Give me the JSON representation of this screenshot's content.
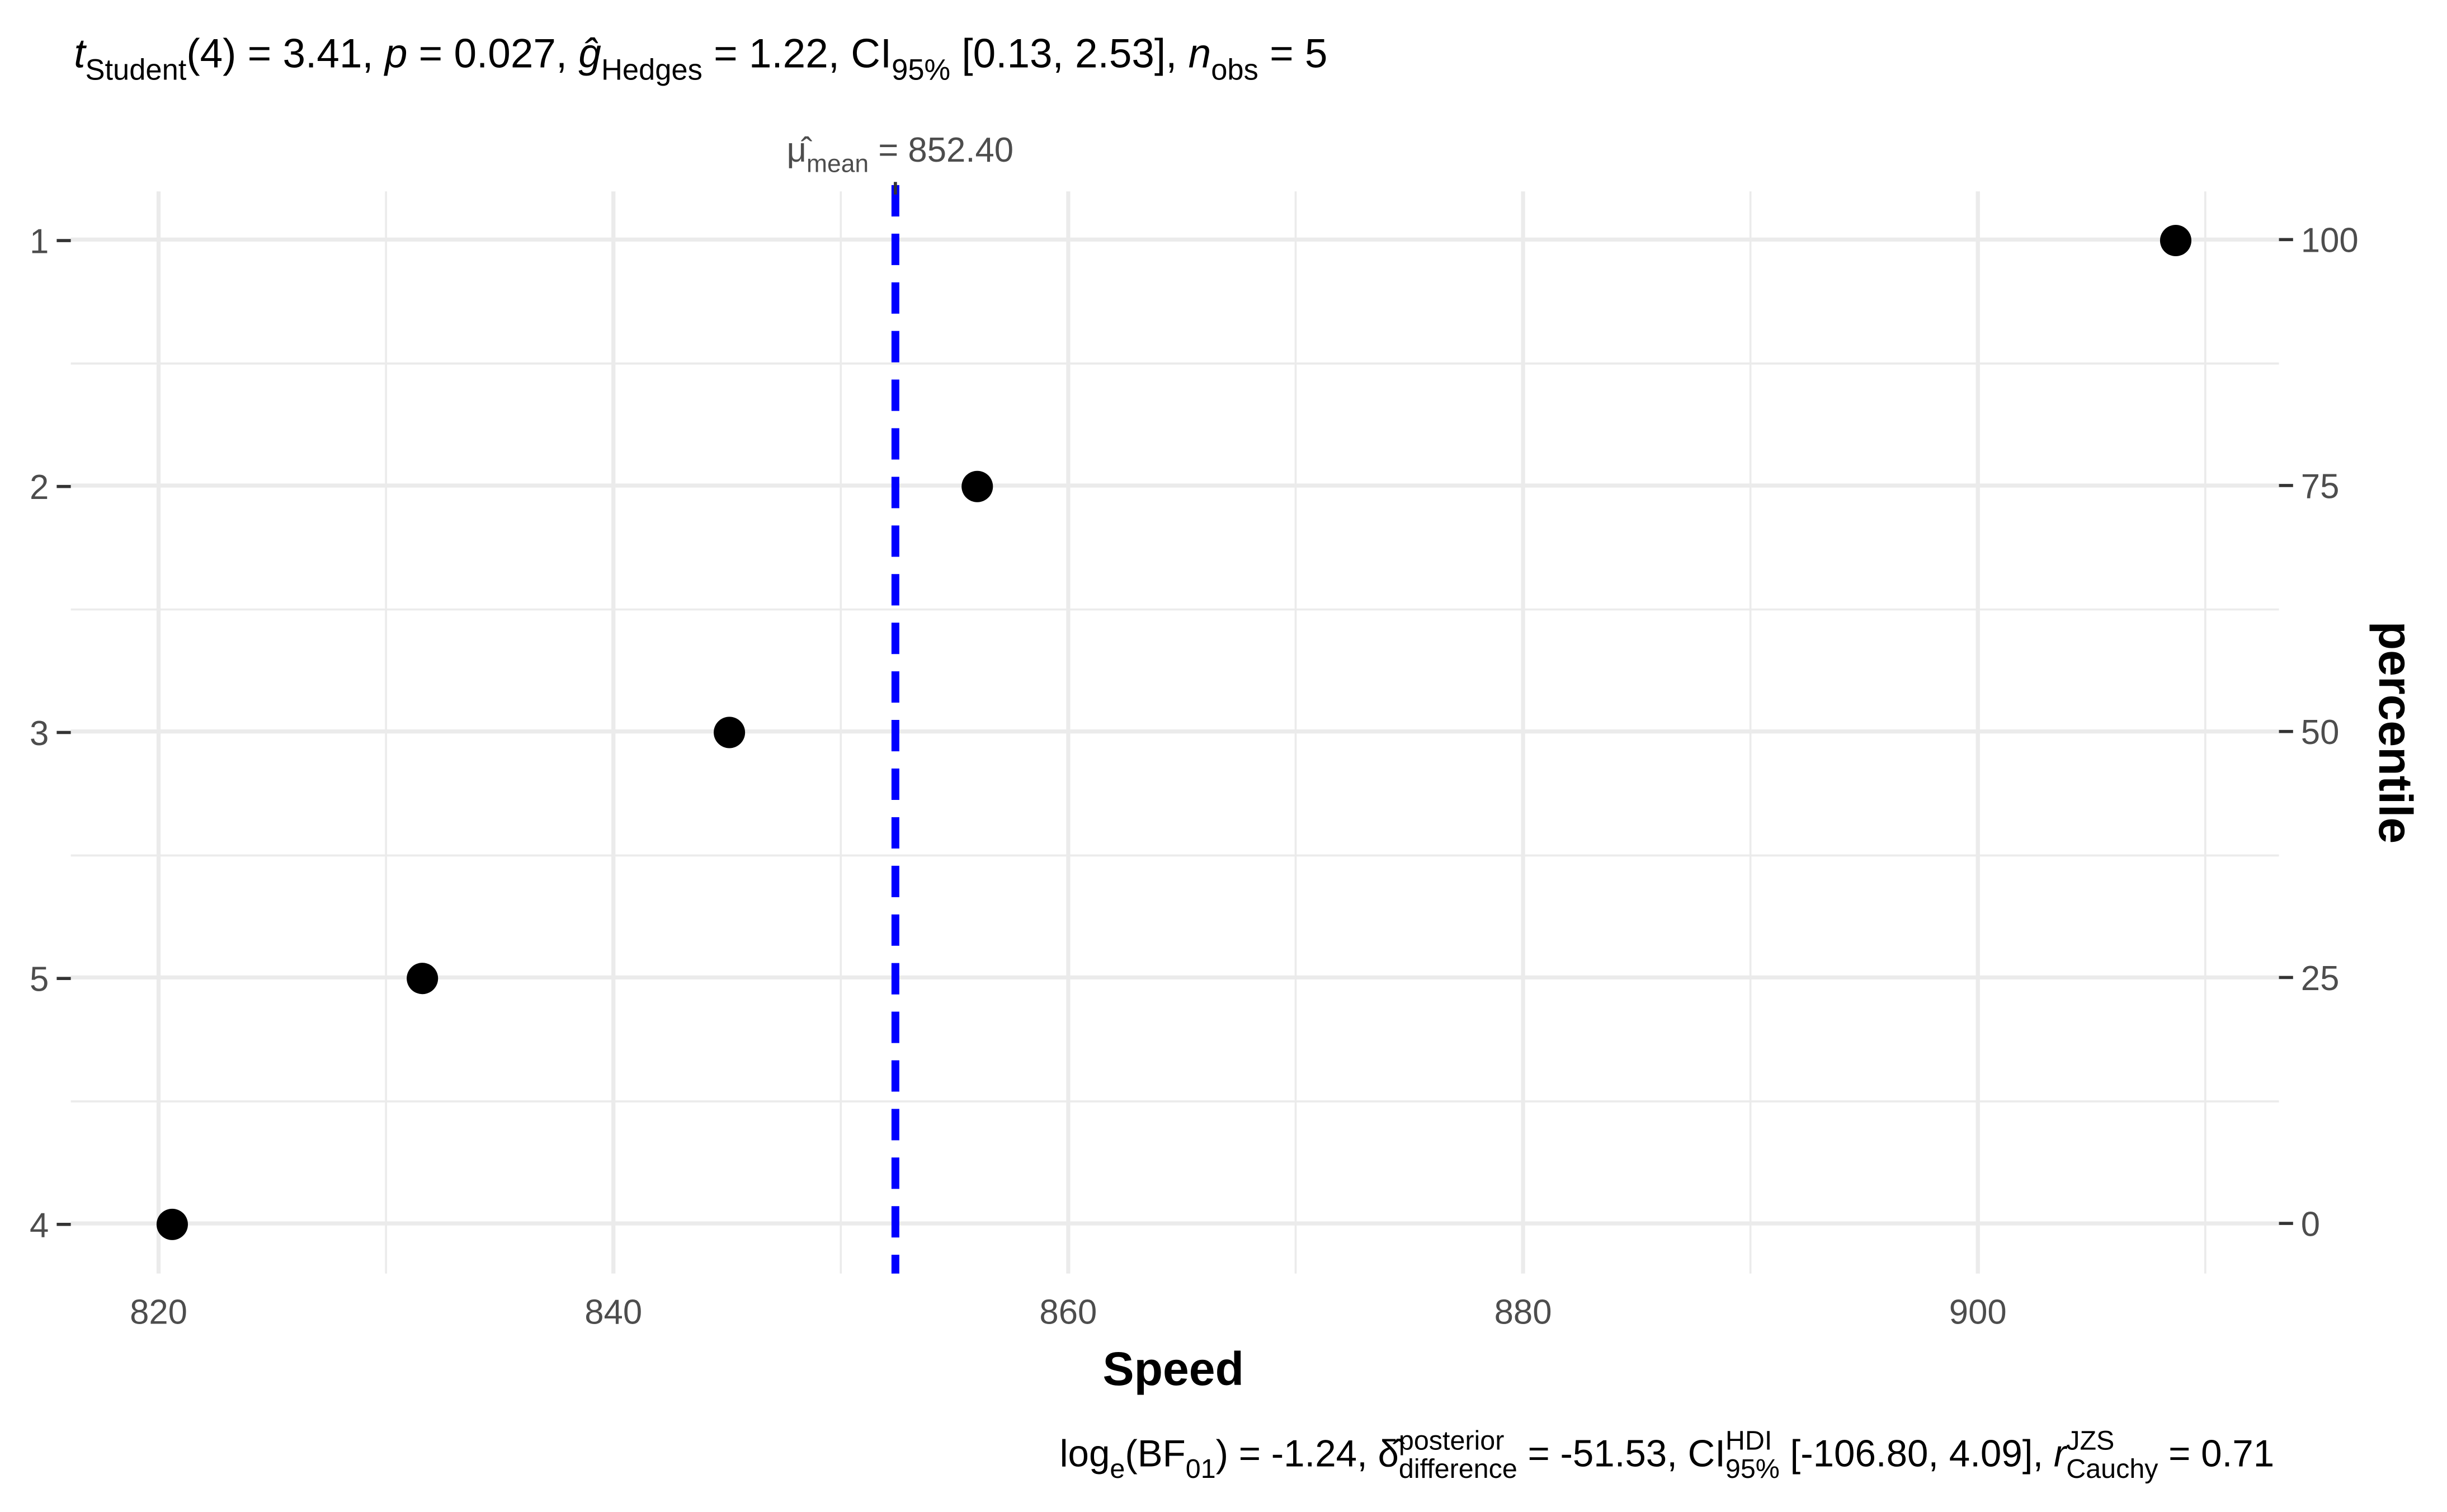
{
  "chart_data": {
    "type": "dot",
    "title_segments": [
      {
        "text": "t",
        "style": "italic"
      },
      {
        "text": "Student",
        "pos": "sub"
      },
      {
        "text": "(4) = 3.41, "
      },
      {
        "text": "p",
        "style": "italic"
      },
      {
        "text": " = 0.027, "
      },
      {
        "text": "ĝ",
        "style": "italic"
      },
      {
        "text": "Hedges",
        "pos": "sub"
      },
      {
        "text": " = 1.22, CI"
      },
      {
        "text": "95%",
        "pos": "sub"
      },
      {
        "text": " [0.13, 2.53], "
      },
      {
        "text": "n",
        "style": "italic"
      },
      {
        "text": "obs",
        "pos": "sub"
      },
      {
        "text": " = 5"
      }
    ],
    "caption_segments": [
      {
        "text": "log"
      },
      {
        "text": "e",
        "pos": "sub"
      },
      {
        "text": "(BF"
      },
      {
        "text": "01",
        "pos": "sub"
      },
      {
        "text": ") = -1.24, "
      },
      {
        "text": "δ̂"
      },
      {
        "text": "posterior",
        "pos": "sup"
      },
      {
        "text": "difference",
        "pos": "sub",
        "stack": true
      },
      {
        "text": " = -51.53, CI"
      },
      {
        "text": "HDI",
        "pos": "sup"
      },
      {
        "text": "95%",
        "pos": "sub",
        "stack": true
      },
      {
        "text": " [-106.80, 4.09], "
      },
      {
        "text": "r",
        "style": "italic"
      },
      {
        "text": "JZS",
        "pos": "sup"
      },
      {
        "text": "Cauchy",
        "pos": "sub",
        "stack": true
      },
      {
        "text": " = 0.71"
      }
    ],
    "mean_line": {
      "value": 852.4,
      "color": "#0000ff",
      "label_segments": [
        {
          "text": "μ̂"
        },
        {
          "text": "mean",
          "pos": "sub"
        },
        {
          "text": " = 852.40"
        }
      ]
    },
    "x_label": "Speed",
    "y2_label": "percentile",
    "categories": [
      "4",
      "5",
      "3",
      "2",
      "1"
    ],
    "values": [
      820.6,
      831.6,
      845.1,
      856.0,
      908.7
    ],
    "color": "#000000",
    "xlim": [
      816.14,
      913.24
    ],
    "xticks": [
      820,
      840,
      860,
      880,
      900
    ],
    "y2lim": [
      -5.1,
      104.9
    ],
    "y2ticks": [
      0,
      25,
      50,
      75,
      100
    ],
    "grid": true
  }
}
